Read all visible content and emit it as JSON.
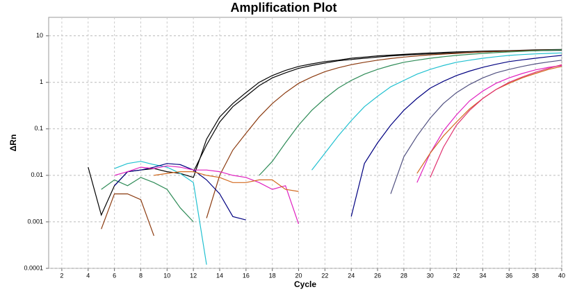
{
  "chart_data": {
    "type": "line",
    "title": "Amplification Plot",
    "x_label": "Cycle",
    "y_label": "ΔRn",
    "y_scale": "log",
    "grid": true,
    "x": [
      1,
      2,
      3,
      4,
      5,
      6,
      7,
      8,
      9,
      10,
      11,
      12,
      13,
      14,
      15,
      16,
      17,
      18,
      19,
      20,
      21,
      22,
      23,
      24,
      25,
      26,
      27,
      28,
      29,
      30,
      31,
      32,
      33,
      34,
      35,
      36,
      37,
      38,
      39,
      40
    ],
    "xlim": [
      1,
      40
    ],
    "xticks": [
      2,
      4,
      6,
      8,
      10,
      12,
      14,
      16,
      18,
      20,
      22,
      24,
      26,
      28,
      30,
      32,
      34,
      36,
      38,
      40
    ],
    "ylim": [
      0.0001,
      25
    ],
    "yticks": [
      0.0001,
      0.001,
      0.01,
      0.1,
      1,
      10
    ],
    "series": [
      {
        "color": "#000000",
        "values": [
          null,
          null,
          null,
          0.015,
          0.0014,
          0.006,
          0.012,
          0.013,
          0.014,
          0.012,
          0.011,
          0.009,
          0.06,
          0.18,
          0.35,
          0.6,
          1.0,
          1.4,
          1.8,
          2.2,
          2.5,
          2.8,
          3.0,
          3.3,
          3.5,
          3.7,
          3.85,
          4.0,
          4.15,
          4.3,
          4.4,
          4.5,
          4.6,
          4.7,
          4.75,
          4.8,
          4.9,
          5.0,
          5.05,
          5.1
        ]
      },
      {
        "color": "#000000",
        "values": [
          null,
          null,
          null,
          null,
          null,
          null,
          null,
          null,
          null,
          null,
          null,
          0.012,
          0.045,
          0.14,
          0.3,
          0.5,
          0.85,
          1.25,
          1.6,
          2.0,
          2.3,
          2.6,
          2.9,
          3.1,
          3.3,
          3.5,
          3.7,
          3.85,
          4.0,
          4.1,
          4.2,
          4.3,
          4.4,
          4.5,
          4.6,
          4.7,
          4.75,
          4.8,
          4.85,
          4.9
        ]
      },
      {
        "color": "#8b3a0f",
        "values": [
          null,
          null,
          null,
          null,
          0.0007,
          0.004,
          0.004,
          0.003,
          0.0005,
          null,
          null,
          null,
          0.0012,
          0.01,
          0.035,
          0.08,
          0.18,
          0.35,
          0.6,
          0.95,
          1.3,
          1.7,
          2.05,
          2.4,
          2.7,
          3.0,
          3.25,
          3.5,
          3.7,
          3.9,
          4.05,
          4.2,
          4.35,
          4.5,
          4.6,
          4.7,
          4.8,
          4.9,
          4.95,
          5.0
        ]
      },
      {
        "color": "#2e8b57",
        "values": [
          null,
          null,
          null,
          null,
          0.005,
          0.008,
          0.006,
          0.009,
          0.007,
          0.005,
          0.002,
          0.001,
          null,
          null,
          null,
          null,
          0.01,
          0.02,
          0.05,
          0.12,
          0.25,
          0.45,
          0.75,
          1.1,
          1.5,
          1.9,
          2.3,
          2.7,
          3.0,
          3.3,
          3.55,
          3.8,
          4.0,
          4.2,
          4.35,
          4.5,
          4.65,
          4.8,
          4.9,
          5.0
        ]
      },
      {
        "color": "#20c0d0",
        "values": [
          null,
          null,
          null,
          null,
          null,
          0.014,
          0.018,
          0.02,
          0.017,
          0.015,
          0.011,
          0.007,
          0.00012,
          null,
          null,
          null,
          null,
          null,
          null,
          null,
          0.013,
          0.03,
          0.07,
          0.15,
          0.3,
          0.5,
          0.8,
          1.1,
          1.5,
          1.9,
          2.3,
          2.7,
          3.0,
          3.3,
          3.55,
          3.8,
          3.95,
          4.1,
          4.2,
          4.3
        ]
      },
      {
        "color": "#000080",
        "values": [
          null,
          null,
          null,
          null,
          null,
          0.006,
          0.012,
          0.013,
          0.015,
          0.018,
          0.017,
          0.013,
          0.008,
          0.004,
          0.0013,
          0.0011,
          null,
          null,
          null,
          null,
          null,
          null,
          null,
          0.0013,
          0.018,
          0.05,
          0.12,
          0.25,
          0.45,
          0.75,
          1.05,
          1.4,
          1.75,
          2.1,
          2.45,
          2.8,
          3.05,
          3.3,
          3.55,
          3.8
        ]
      },
      {
        "color": "#505080",
        "values": [
          null,
          null,
          null,
          null,
          null,
          null,
          null,
          null,
          null,
          null,
          null,
          null,
          null,
          null,
          null,
          null,
          null,
          null,
          null,
          null,
          null,
          null,
          null,
          null,
          null,
          null,
          0.004,
          0.025,
          0.07,
          0.17,
          0.35,
          0.6,
          0.9,
          1.25,
          1.6,
          1.9,
          2.2,
          2.5,
          2.75,
          3.0
        ]
      },
      {
        "color": "#e020c0",
        "values": [
          null,
          null,
          null,
          null,
          null,
          0.01,
          0.012,
          0.015,
          0.014,
          0.016,
          0.015,
          0.013,
          0.013,
          0.012,
          0.01,
          0.009,
          0.007,
          0.005,
          0.006,
          0.0009,
          null,
          null,
          null,
          null,
          null,
          null,
          null,
          null,
          0.007,
          0.03,
          0.09,
          0.2,
          0.4,
          0.65,
          0.95,
          1.25,
          1.55,
          1.85,
          2.1,
          2.3
        ]
      },
      {
        "color": "#d2691e",
        "values": [
          null,
          null,
          null,
          null,
          null,
          null,
          null,
          null,
          0.01,
          0.011,
          0.012,
          0.012,
          0.01,
          0.009,
          0.007,
          0.007,
          0.008,
          0.008,
          0.005,
          0.0045,
          null,
          null,
          null,
          null,
          null,
          null,
          null,
          null,
          0.011,
          0.03,
          0.07,
          0.14,
          0.27,
          0.45,
          0.7,
          0.95,
          1.25,
          1.55,
          1.9,
          2.2
        ]
      },
      {
        "color": "#e0306f",
        "values": [
          null,
          null,
          null,
          null,
          null,
          null,
          null,
          null,
          null,
          null,
          null,
          null,
          null,
          null,
          null,
          null,
          null,
          null,
          null,
          null,
          null,
          null,
          null,
          null,
          null,
          null,
          null,
          null,
          null,
          0.009,
          0.04,
          0.12,
          0.25,
          0.45,
          0.7,
          1.0,
          1.3,
          1.65,
          2.0,
          2.4
        ]
      }
    ]
  }
}
